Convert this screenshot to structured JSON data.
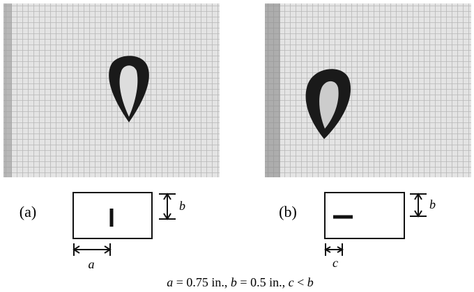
{
  "panels": [
    {
      "label": "(a)",
      "dimensions": [
        "b",
        "a"
      ]
    },
    {
      "label": "(b)",
      "dimensions": [
        "b",
        "c"
      ]
    }
  ],
  "caption": [
    "a",
    " = 0.75 in., ",
    "b",
    " = 0.5 in., ",
    "c",
    " < ",
    "b"
  ]
}
